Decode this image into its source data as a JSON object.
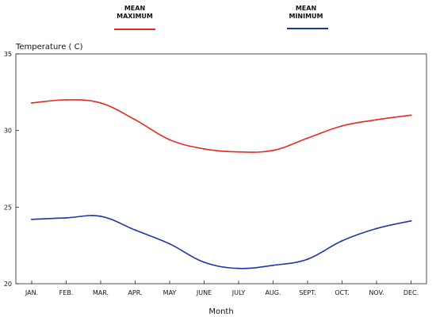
{
  "chart_data": {
    "type": "line",
    "ylabel": "Temperature ( C)",
    "xlabel": "Month",
    "categories": [
      "JAN.",
      "FEB.",
      "MAR.",
      "APR.",
      "MAY",
      "JUNE",
      "JULY",
      "AUG.",
      "SEPT.",
      "OCT.",
      "NOV.",
      "DEC."
    ],
    "ylim": [
      20,
      35
    ],
    "yticks": [
      "20",
      "25",
      "30",
      "35"
    ],
    "grid": false,
    "legend_position": "top",
    "series": [
      {
        "name_lines": [
          "MEAN",
          "MAXIMUM"
        ],
        "color": "#e8291f",
        "values": [
          31.8,
          32.0,
          31.8,
          30.7,
          29.4,
          28.8,
          28.6,
          28.7,
          29.5,
          30.3,
          30.7,
          31.0
        ]
      },
      {
        "name_lines": [
          "MEAN",
          "MINIMUM"
        ],
        "color": "#1f36a8",
        "values": [
          24.2,
          24.3,
          24.4,
          23.5,
          22.6,
          21.4,
          21.0,
          21.2,
          21.6,
          22.8,
          23.6,
          24.1
        ]
      }
    ]
  }
}
